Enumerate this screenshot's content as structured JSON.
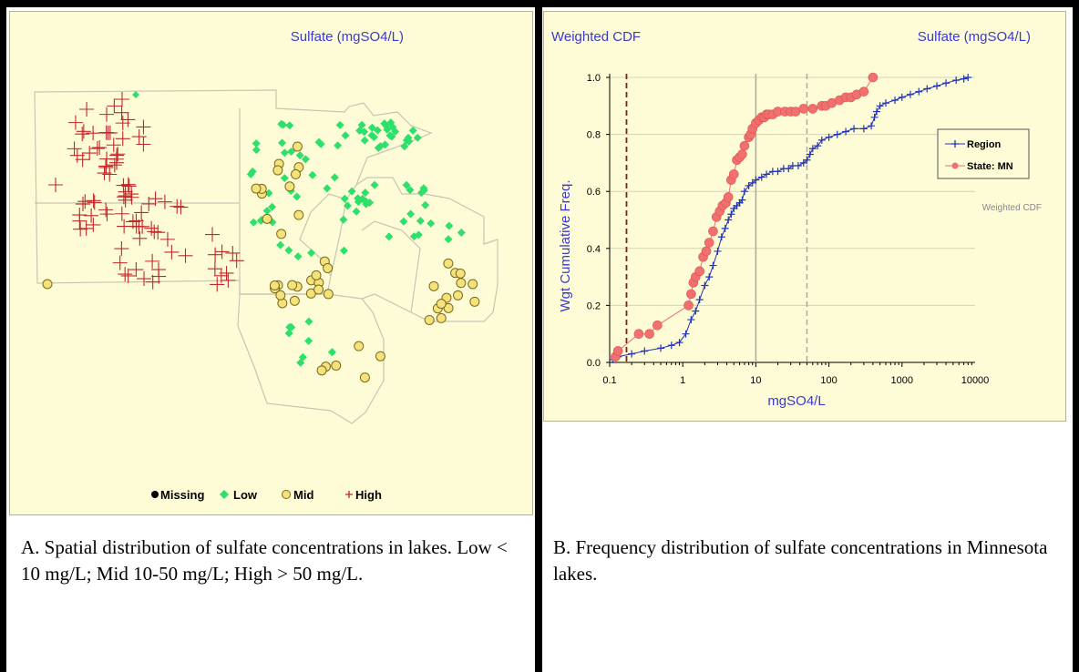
{
  "map_panel": {
    "title": "Sulfate (mgSO4/L)",
    "legend": [
      {
        "label": "Missing",
        "marker": "dot",
        "color": "#000000"
      },
      {
        "label": "Low",
        "marker": "diamond",
        "color": "#2ee06b"
      },
      {
        "label": "Mid",
        "marker": "circle",
        "color": "#f6e27a"
      },
      {
        "label": "High",
        "marker": "plus",
        "color": "#c0282b"
      }
    ],
    "caption": "A. Spatial distribution of sulfate concentrations in lakes. Low < 10 mg/L; Mid 10-50 mg/L; High > 50 mg/L."
  },
  "cdf_panel": {
    "caption": "B. Frequency distribution of sulfate concentrations in Minnesota lakes."
  },
  "colors": {
    "panel_bg": "#fdfcd6",
    "title_blue": "#3a3ad0",
    "region_blue": "#2233bb",
    "state_red": "#f07070",
    "ref_dark_red": "#8b1a1a",
    "ref_gray": "#a8a8a8"
  },
  "chart_data": {
    "type": "line",
    "title": "Weighted CDF",
    "subtitle": "Sulfate (mgSO4/L)",
    "xlabel": "mgSO4/L",
    "ylabel": "Wgt Cumulative Freq.",
    "xscale": "log",
    "xlim": [
      0.1,
      10000
    ],
    "ylim": [
      0.0,
      1.0
    ],
    "xticks": [
      {
        "value": 0.1,
        "label": "0.1"
      },
      {
        "value": 1,
        "label": "1"
      },
      {
        "value": 10,
        "label": "10"
      },
      {
        "value": 100,
        "label": "100"
      },
      {
        "value": 1000,
        "label": "1000"
      },
      {
        "value": 10000,
        "label": "10000"
      }
    ],
    "yticks": [
      {
        "value": 0.0,
        "label": "0.0"
      },
      {
        "value": 0.2,
        "label": "0.2"
      },
      {
        "value": 0.4,
        "label": "0.4"
      },
      {
        "value": 0.6,
        "label": "0.6"
      },
      {
        "value": 0.8,
        "label": "0.8"
      },
      {
        "value": 1.0,
        "label": "1.0"
      }
    ],
    "grid": true,
    "legend_position": "right",
    "annotation": "Weighted CDF",
    "reference_lines": [
      {
        "x": 0.17,
        "style": "dashed",
        "color": "#8b1a1a"
      },
      {
        "x": 10,
        "style": "solid",
        "color": "#a8a8a8"
      },
      {
        "x": 50,
        "style": "dashed",
        "color": "#a8a8a8"
      }
    ],
    "series": [
      {
        "name": "Region",
        "marker": "plus",
        "color": "#2233bb",
        "x": [
          0.11,
          0.13,
          0.2,
          0.3,
          0.5,
          0.7,
          0.9,
          1.1,
          1.3,
          1.5,
          1.7,
          2.0,
          2.3,
          2.6,
          3.0,
          3.4,
          3.8,
          4.2,
          4.6,
          5.0,
          5.5,
          6.0,
          6.5,
          7,
          8,
          9,
          10,
          12,
          14,
          17,
          20,
          24,
          28,
          32,
          38,
          45,
          50,
          55,
          60,
          70,
          80,
          100,
          130,
          170,
          220,
          300,
          380,
          420,
          450,
          500,
          600,
          800,
          1000,
          1300,
          1700,
          2200,
          3000,
          4000,
          5500,
          7000,
          8000
        ],
        "y": [
          0.01,
          0.02,
          0.03,
          0.04,
          0.05,
          0.06,
          0.07,
          0.1,
          0.15,
          0.18,
          0.22,
          0.27,
          0.3,
          0.34,
          0.39,
          0.44,
          0.47,
          0.5,
          0.52,
          0.54,
          0.55,
          0.56,
          0.57,
          0.6,
          0.62,
          0.63,
          0.64,
          0.65,
          0.66,
          0.67,
          0.67,
          0.68,
          0.68,
          0.69,
          0.69,
          0.7,
          0.71,
          0.73,
          0.75,
          0.76,
          0.78,
          0.79,
          0.8,
          0.81,
          0.82,
          0.82,
          0.83,
          0.86,
          0.88,
          0.9,
          0.91,
          0.92,
          0.93,
          0.94,
          0.95,
          0.96,
          0.97,
          0.98,
          0.99,
          0.995,
          1.0
        ]
      },
      {
        "name": "State: MN",
        "marker": "circle",
        "color": "#f07070",
        "x": [
          0.12,
          0.13,
          0.25,
          0.35,
          0.45,
          1.2,
          1.3,
          1.4,
          1.5,
          1.7,
          1.9,
          2.1,
          2.3,
          2.6,
          2.9,
          3.2,
          3.5,
          3.9,
          4.2,
          4.6,
          5.0,
          5.5,
          6.0,
          6.5,
          7,
          8,
          8.5,
          9,
          10,
          11,
          12,
          13,
          14,
          15,
          17,
          20,
          25,
          30,
          35,
          45,
          60,
          80,
          90,
          110,
          140,
          170,
          200,
          240,
          300,
          400
        ],
        "y": [
          0.02,
          0.04,
          0.1,
          0.1,
          0.13,
          0.2,
          0.24,
          0.28,
          0.3,
          0.32,
          0.37,
          0.39,
          0.42,
          0.46,
          0.51,
          0.53,
          0.55,
          0.56,
          0.58,
          0.64,
          0.66,
          0.71,
          0.72,
          0.73,
          0.76,
          0.79,
          0.8,
          0.82,
          0.84,
          0.85,
          0.86,
          0.86,
          0.87,
          0.87,
          0.87,
          0.88,
          0.88,
          0.88,
          0.88,
          0.89,
          0.89,
          0.9,
          0.9,
          0.91,
          0.92,
          0.93,
          0.93,
          0.94,
          0.95,
          1.0
        ]
      }
    ]
  }
}
